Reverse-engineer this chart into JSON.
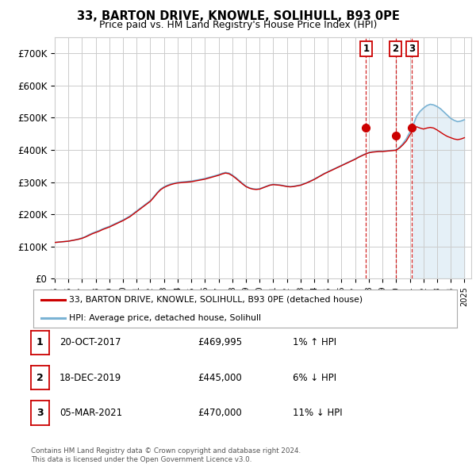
{
  "title": "33, BARTON DRIVE, KNOWLE, SOLIHULL, B93 0PE",
  "subtitle": "Price paid vs. HM Land Registry's House Price Index (HPI)",
  "hpi_legend": "HPI: Average price, detached house, Solihull",
  "price_legend": "33, BARTON DRIVE, KNOWLE, SOLIHULL, B93 0PE (detached house)",
  "ylim": [
    0,
    750000
  ],
  "yticks": [
    0,
    100000,
    200000,
    300000,
    400000,
    500000,
    600000,
    700000
  ],
  "ytick_labels": [
    "£0",
    "£100K",
    "£200K",
    "£300K",
    "£400K",
    "£500K",
    "£600K",
    "£700K"
  ],
  "xmin": 1995,
  "xmax": 2025.5,
  "footer1": "Contains HM Land Registry data © Crown copyright and database right 2024.",
  "footer2": "This data is licensed under the Open Government Licence v3.0.",
  "sales": [
    {
      "label": "1",
      "date": "20-OCT-2017",
      "price": 469995,
      "hpi_txt": "1% ↑ HPI",
      "year": 2017.8
    },
    {
      "label": "2",
      "date": "18-DEC-2019",
      "price": 445000,
      "hpi_txt": "6% ↓ HPI",
      "year": 2019.96
    },
    {
      "label": "3",
      "date": "05-MAR-2021",
      "price": 470000,
      "hpi_txt": "11% ↓ HPI",
      "year": 2021.17
    }
  ],
  "hpi_color": "#7ab3d4",
  "price_color": "#cc0000",
  "vline_color": "#cc0000",
  "shade_color": "#daeaf5",
  "grid_color": "#cccccc",
  "bg_color": "#ffffff",
  "hpi_years": [
    1995,
    1995.25,
    1995.5,
    1995.75,
    1996,
    1996.25,
    1996.5,
    1996.75,
    1997,
    1997.25,
    1997.5,
    1997.75,
    1998,
    1998.25,
    1998.5,
    1998.75,
    1999,
    1999.25,
    1999.5,
    1999.75,
    2000,
    2000.25,
    2000.5,
    2000.75,
    2001,
    2001.25,
    2001.5,
    2001.75,
    2002,
    2002.25,
    2002.5,
    2002.75,
    2003,
    2003.25,
    2003.5,
    2003.75,
    2004,
    2004.25,
    2004.5,
    2004.75,
    2005,
    2005.25,
    2005.5,
    2005.75,
    2006,
    2006.25,
    2006.5,
    2006.75,
    2007,
    2007.25,
    2007.5,
    2007.75,
    2008,
    2008.25,
    2008.5,
    2008.75,
    2009,
    2009.25,
    2009.5,
    2009.75,
    2010,
    2010.25,
    2010.5,
    2010.75,
    2011,
    2011.25,
    2011.5,
    2011.75,
    2012,
    2012.25,
    2012.5,
    2012.75,
    2013,
    2013.25,
    2013.5,
    2013.75,
    2014,
    2014.25,
    2014.5,
    2014.75,
    2015,
    2015.25,
    2015.5,
    2015.75,
    2016,
    2016.25,
    2016.5,
    2016.75,
    2017,
    2017.25,
    2017.5,
    2017.75,
    2018,
    2018.25,
    2018.5,
    2018.75,
    2019,
    2019.25,
    2019.5,
    2019.75,
    2020,
    2020.25,
    2020.5,
    2020.75,
    2021,
    2021.25,
    2021.5,
    2021.75,
    2022,
    2022.25,
    2022.5,
    2022.75,
    2023,
    2023.25,
    2023.5,
    2023.75,
    2024,
    2024.25,
    2024.5,
    2024.75,
    2025
  ],
  "hpi_vals": [
    112000,
    113000,
    114000,
    115000,
    116000,
    118000,
    120000,
    123000,
    126000,
    130000,
    136000,
    141000,
    145000,
    149000,
    154000,
    158000,
    162000,
    167000,
    172000,
    177000,
    182000,
    188000,
    194000,
    202000,
    210000,
    218000,
    226000,
    234000,
    242000,
    254000,
    267000,
    278000,
    285000,
    290000,
    294000,
    297000,
    299000,
    300000,
    301000,
    302000,
    303000,
    305000,
    307000,
    309000,
    311000,
    314000,
    317000,
    320000,
    323000,
    327000,
    330000,
    328000,
    322000,
    314000,
    305000,
    296000,
    287000,
    282000,
    279000,
    278000,
    279000,
    283000,
    287000,
    291000,
    293000,
    292000,
    291000,
    289000,
    287000,
    286000,
    287000,
    289000,
    291000,
    295000,
    299000,
    304000,
    309000,
    315000,
    321000,
    327000,
    332000,
    337000,
    342000,
    347000,
    352000,
    357000,
    362000,
    367000,
    372000,
    378000,
    383000,
    388000,
    392000,
    394000,
    395000,
    396000,
    396000,
    397000,
    398000,
    399000,
    400000,
    408000,
    420000,
    435000,
    455000,
    478000,
    505000,
    520000,
    530000,
    538000,
    542000,
    540000,
    535000,
    528000,
    518000,
    508000,
    498000,
    492000,
    488000,
    490000,
    494000
  ],
  "red_vals": [
    112000,
    113000,
    114000,
    115000,
    116000,
    118000,
    120000,
    122000,
    125000,
    129000,
    134000,
    139000,
    143000,
    147000,
    152000,
    156000,
    160000,
    165000,
    170000,
    175000,
    180000,
    186000,
    192000,
    200000,
    208000,
    216000,
    224000,
    232000,
    240000,
    252000,
    265000,
    276000,
    283000,
    288000,
    292000,
    295000,
    297000,
    298000,
    299000,
    300000,
    301000,
    303000,
    305000,
    307000,
    309000,
    312000,
    315000,
    318000,
    321000,
    325000,
    328000,
    326000,
    320000,
    312000,
    303000,
    294000,
    286000,
    281000,
    278000,
    277000,
    278000,
    282000,
    286000,
    290000,
    292000,
    291000,
    290000,
    288000,
    286000,
    285000,
    286000,
    288000,
    290000,
    294000,
    298000,
    303000,
    308000,
    314000,
    320000,
    326000,
    331000,
    336000,
    341000,
    346000,
    351000,
    356000,
    361000,
    366000,
    371000,
    377000,
    382000,
    387000,
    391000,
    393000,
    394000,
    395000,
    395000,
    396000,
    397000,
    398000,
    399000,
    406000,
    416000,
    428000,
    446000,
    462000,
    472000,
    468000,
    465000,
    468000,
    470000,
    468000,
    462000,
    455000,
    448000,
    442000,
    438000,
    434000,
    432000,
    434000,
    438000
  ]
}
